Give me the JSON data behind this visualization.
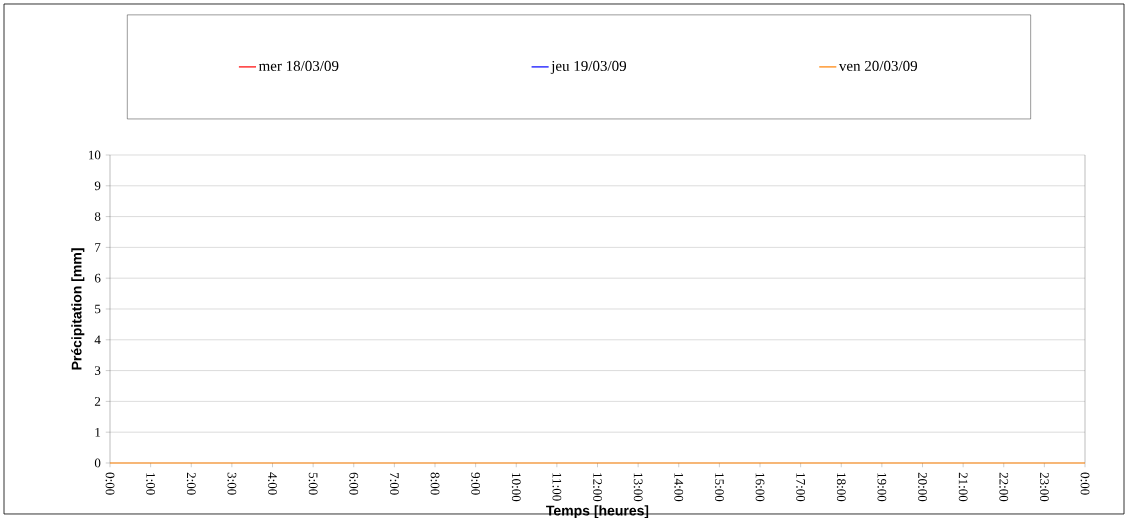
{
  "chart_data": {
    "type": "line",
    "xlabel": "Temps [heures]",
    "ylabel": "Précipitation [mm]",
    "x": [
      0,
      24
    ],
    "series": [
      {
        "name": "mer 18/03/09",
        "color": "#ff0000",
        "values": [
          null,
          null
        ]
      },
      {
        "name": "jeu 19/03/09",
        "color": "#0000ff",
        "values": [
          null,
          null
        ]
      },
      {
        "name": "ven 20/03/09",
        "color": "#ff8000",
        "values": [
          0,
          0
        ]
      }
    ],
    "xlim": [
      0,
      24
    ],
    "xticks": [
      {
        "value": 0,
        "label": "0:00"
      },
      {
        "value": 1,
        "label": "1:00"
      },
      {
        "value": 2,
        "label": "2:00"
      },
      {
        "value": 3,
        "label": "3:00"
      },
      {
        "value": 4,
        "label": "4:00"
      },
      {
        "value": 5,
        "label": "5:00"
      },
      {
        "value": 6,
        "label": "6:00"
      },
      {
        "value": 7,
        "label": "7:00"
      },
      {
        "value": 8,
        "label": "8:00"
      },
      {
        "value": 9,
        "label": "9:00"
      },
      {
        "value": 10,
        "label": "10:00"
      },
      {
        "value": 11,
        "label": "11:00"
      },
      {
        "value": 12,
        "label": "12:00"
      },
      {
        "value": 13,
        "label": "13:00"
      },
      {
        "value": 14,
        "label": "14:00"
      },
      {
        "value": 15,
        "label": "15:00"
      },
      {
        "value": 16,
        "label": "16:00"
      },
      {
        "value": 17,
        "label": "17:00"
      },
      {
        "value": 18,
        "label": "18:00"
      },
      {
        "value": 19,
        "label": "19:00"
      },
      {
        "value": 20,
        "label": "20:00"
      },
      {
        "value": 21,
        "label": "21:00"
      },
      {
        "value": 22,
        "label": "22:00"
      },
      {
        "value": 23,
        "label": "23:00"
      },
      {
        "value": 24,
        "label": "0:00"
      }
    ],
    "ylim": [
      0,
      10
    ],
    "yticks": [
      0,
      1,
      2,
      3,
      4,
      5,
      6,
      7,
      8,
      9,
      10
    ],
    "grid": "y",
    "legend": "top",
    "marker": "none",
    "line_style": "solid"
  }
}
